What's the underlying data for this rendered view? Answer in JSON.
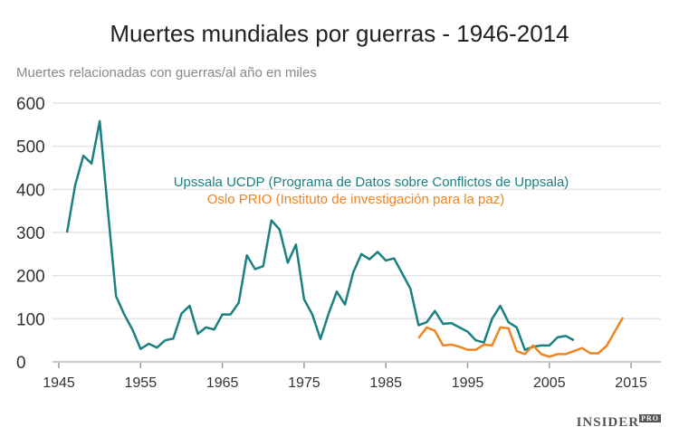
{
  "chart_data": {
    "type": "line",
    "title": "Muertes mundiales por guerras - 1946-2014",
    "ylabel": "Muertes relacionadas con guerras/al año en miles",
    "xlim": [
      1945,
      2016
    ],
    "ylim": [
      0,
      600
    ],
    "xticks": [
      1945,
      1955,
      1965,
      1975,
      1985,
      1995,
      2005,
      2015
    ],
    "yticks": [
      0,
      100,
      200,
      300,
      400,
      500,
      600
    ],
    "grid": "horizontal",
    "series": [
      {
        "name": "Upssala UCDP (Programa de Datos sobre Conflictos de Uppsala)",
        "color": "#1a8080",
        "start": 1946,
        "values": [
          300,
          410,
          478,
          460,
          558,
          350,
          152,
          110,
          75,
          30,
          42,
          33,
          50,
          54,
          112,
          130,
          65,
          80,
          75,
          110,
          110,
          137,
          247,
          215,
          222,
          328,
          307,
          230,
          272,
          145,
          110,
          53,
          112,
          163,
          133,
          207,
          250,
          238,
          255,
          235,
          240,
          205,
          170,
          85,
          92,
          118,
          88,
          90,
          80,
          70,
          50,
          45,
          100,
          130,
          92,
          80,
          28,
          35,
          38,
          38,
          57,
          60,
          50
        ]
      },
      {
        "name": "Oslo PRIO (Instituto de investigación para la paz)",
        "color": "#f0841e",
        "start": 1989,
        "values": [
          55,
          80,
          72,
          38,
          40,
          35,
          28,
          28,
          40,
          38,
          80,
          78,
          25,
          18,
          38,
          18,
          12,
          18,
          18,
          25,
          32,
          20,
          20,
          37,
          70,
          103
        ]
      }
    ]
  },
  "logo": {
    "text": "INSIDER",
    "sup": "PRO"
  }
}
